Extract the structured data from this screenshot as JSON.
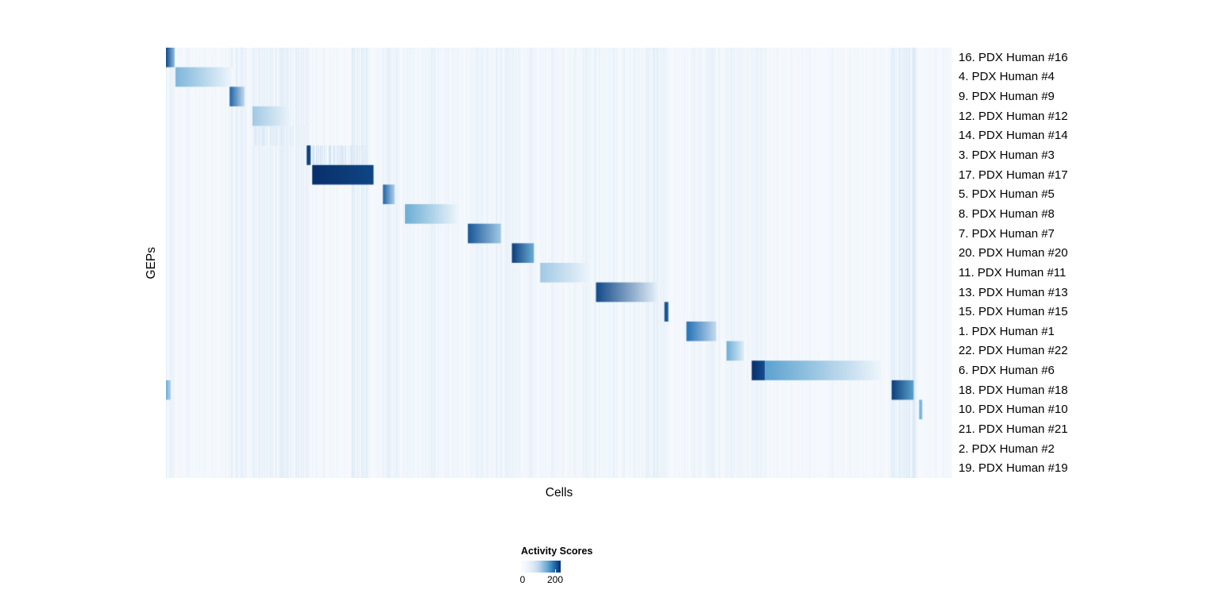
{
  "chart_data": {
    "type": "heatmap",
    "title": "",
    "xlabel": "Cells",
    "ylabel": "GEPs",
    "legend": {
      "title": "Activity Scores",
      "min_label": "0",
      "max_label": "200",
      "min_value": 0,
      "max_value": 200
    },
    "colormap": {
      "name": "Blues",
      "stops": [
        {
          "t": 0.0,
          "color": "#f7fbff"
        },
        {
          "t": 0.25,
          "color": "#c6dbef"
        },
        {
          "t": 0.5,
          "color": "#6baed6"
        },
        {
          "t": 0.75,
          "color": "#2171b5"
        },
        {
          "t": 1.0,
          "color": "#08306b"
        }
      ],
      "background": "#f5f9fd"
    },
    "stripe_regions": [
      {
        "x0": 0.0,
        "x1": 0.01,
        "strength": 0.3
      },
      {
        "x0": 0.08,
        "x1": 0.103,
        "strength": 0.45
      },
      {
        "x0": 0.11,
        "x1": 0.182,
        "strength": 0.3
      },
      {
        "x0": 0.236,
        "x1": 0.258,
        "strength": 0.35
      },
      {
        "x0": 0.276,
        "x1": 0.296,
        "strength": 0.25
      },
      {
        "x0": 0.302,
        "x1": 0.373,
        "strength": 0.12
      },
      {
        "x0": 0.384,
        "x1": 0.47,
        "strength": 0.25
      },
      {
        "x0": 0.476,
        "x1": 0.545,
        "strength": 0.15
      },
      {
        "x0": 0.546,
        "x1": 0.64,
        "strength": 0.25
      },
      {
        "x0": 0.662,
        "x1": 0.712,
        "strength": 0.2
      },
      {
        "x0": 0.712,
        "x1": 0.736,
        "strength": 0.15
      },
      {
        "x0": 0.744,
        "x1": 0.764,
        "strength": 0.15
      },
      {
        "x0": 0.922,
        "x1": 0.955,
        "strength": 0.5
      }
    ],
    "rows": [
      {
        "label": "16. PDX Human #16",
        "blocks": [
          {
            "x0": 0.0,
            "x1": 0.011,
            "v0": 0.9,
            "v1": 0.4
          }
        ]
      },
      {
        "label": "4. PDX Human #4",
        "blocks": [
          {
            "x0": 0.012,
            "x1": 0.085,
            "v0": 0.45,
            "v1": 0.03
          }
        ]
      },
      {
        "label": "9. PDX Human #9",
        "blocks": [
          {
            "x0": 0.081,
            "x1": 0.1,
            "v0": 0.8,
            "v1": 0.25
          }
        ]
      },
      {
        "label": "12. PDX Human #12",
        "blocks": [
          {
            "x0": 0.11,
            "x1": 0.16,
            "v0": 0.35,
            "v1": 0.04
          }
        ]
      },
      {
        "label": "14. PDX Human #14",
        "blocks": [
          {
            "x0": 0.112,
            "x1": 0.18,
            "v0": 0.2,
            "v1": 0.06,
            "striped": true
          }
        ]
      },
      {
        "label": "3. PDX Human #3",
        "blocks": [
          {
            "x0": 0.179,
            "x1": 0.184,
            "v0": 0.95,
            "v1": 0.9
          },
          {
            "x0": 0.186,
            "x1": 0.256,
            "v0": 0.3,
            "v1": 0.12,
            "striped": true
          }
        ]
      },
      {
        "label": "17. PDX Human #17",
        "blocks": [
          {
            "x0": 0.186,
            "x1": 0.264,
            "v0": 1.0,
            "v1": 0.92
          }
        ]
      },
      {
        "label": "5. PDX Human #5",
        "blocks": [
          {
            "x0": 0.276,
            "x1": 0.291,
            "v0": 0.8,
            "v1": 0.3
          }
        ]
      },
      {
        "label": "8. PDX Human #8",
        "blocks": [
          {
            "x0": 0.304,
            "x1": 0.372,
            "v0": 0.5,
            "v1": 0.04
          }
        ]
      },
      {
        "label": "7. PDX Human #7",
        "blocks": [
          {
            "x0": 0.384,
            "x1": 0.426,
            "v0": 0.85,
            "v1": 0.35
          }
        ]
      },
      {
        "label": "20. PDX Human #20",
        "blocks": [
          {
            "x0": 0.44,
            "x1": 0.468,
            "v0": 0.95,
            "v1": 0.5
          }
        ]
      },
      {
        "label": "11. PDX Human #11",
        "blocks": [
          {
            "x0": 0.476,
            "x1": 0.542,
            "v0": 0.35,
            "v1": 0.03
          }
        ]
      },
      {
        "label": "13. PDX Human #13",
        "blocks": [
          {
            "x0": 0.547,
            "x1": 0.624,
            "v0": 0.9,
            "v1": 0.1
          }
        ]
      },
      {
        "label": "15. PDX Human #15",
        "blocks": [
          {
            "x0": 0.634,
            "x1": 0.639,
            "v0": 0.9,
            "v1": 0.8
          }
        ]
      },
      {
        "label": "1. PDX Human #1",
        "blocks": [
          {
            "x0": 0.662,
            "x1": 0.7,
            "v0": 0.75,
            "v1": 0.25
          }
        ]
      },
      {
        "label": "22. PDX Human #22",
        "blocks": [
          {
            "x0": 0.713,
            "x1": 0.735,
            "v0": 0.5,
            "v1": 0.12
          }
        ]
      },
      {
        "label": "6. PDX Human #6",
        "blocks": [
          {
            "x0": 0.745,
            "x1": 0.762,
            "v0": 1.0,
            "v1": 0.88
          },
          {
            "x0": 0.762,
            "x1": 0.91,
            "v0": 0.55,
            "v1": 0.04
          }
        ]
      },
      {
        "label": "18. PDX Human #18",
        "blocks": [
          {
            "x0": 0.0,
            "x1": 0.006,
            "v0": 0.5,
            "v1": 0.3
          },
          {
            "x0": 0.923,
            "x1": 0.951,
            "v0": 0.95,
            "v1": 0.55
          }
        ]
      },
      {
        "label": "10. PDX Human #10",
        "blocks": [
          {
            "x0": 0.958,
            "x1": 0.962,
            "v0": 0.5,
            "v1": 0.4
          }
        ]
      },
      {
        "label": "21. PDX Human #21",
        "blocks": []
      },
      {
        "label": "2. PDX Human #2",
        "blocks": []
      },
      {
        "label": "19. PDX Human #19",
        "blocks": []
      }
    ]
  }
}
